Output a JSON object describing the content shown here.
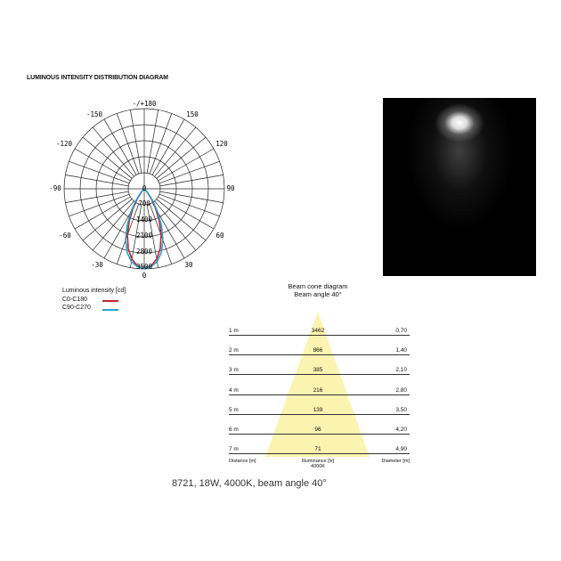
{
  "title": "LUMINOUS INTENSITY DISTRIBUTION DIAGRAM",
  "polar": {
    "angle_labels": {
      "top": "-/+180",
      "m150": "-150",
      "p150": "150",
      "m120": "-120",
      "p120": "120",
      "m90": "-90",
      "p90": "90",
      "m60": "-60",
      "p60": "60",
      "m30": "-30",
      "p30": "30",
      "bottom": "0"
    },
    "center_label": "0",
    "ring_labels": [
      "700",
      "1400",
      "2100",
      "2800",
      "3500"
    ],
    "ring_values": [
      700,
      1400,
      2100,
      2800,
      3500
    ],
    "max": 3500,
    "curves": [
      {
        "name": "C0-C180",
        "color": "#c0262d",
        "angles": [
          0,
          5,
          10,
          15,
          20,
          25,
          30,
          35,
          40,
          45,
          90
        ],
        "values": [
          3462,
          3380,
          3120,
          2700,
          2150,
          1550,
          980,
          520,
          220,
          60,
          0
        ]
      },
      {
        "name": "C90-C270",
        "color": "#2a9fd0",
        "angles": [
          0,
          5,
          10,
          15,
          20,
          25,
          30,
          35,
          40,
          45,
          90
        ],
        "values": [
          3462,
          3420,
          3230,
          2880,
          2380,
          1780,
          1180,
          660,
          300,
          80,
          0
        ]
      }
    ]
  },
  "legend": {
    "title": "Luminous intensity [cd]",
    "items": [
      {
        "label": "C0-C180",
        "color": "#c0262d"
      },
      {
        "label": "C90-C270",
        "color": "#2a9fd0"
      }
    ]
  },
  "photo": {
    "icon": "light-beam-photo"
  },
  "cone": {
    "title": "Beam cone diagram",
    "subtitle": "Beam angle 40°",
    "color": "#fbf3b0",
    "rows": [
      {
        "distance": "1 m",
        "illuminance": "3462",
        "diameter": "0,70"
      },
      {
        "distance": "2 m",
        "illuminance": "866",
        "diameter": "1,40"
      },
      {
        "distance": "3 m",
        "illuminance": "385",
        "diameter": "2,10"
      },
      {
        "distance": "4 m",
        "illuminance": "216",
        "diameter": "2,80"
      },
      {
        "distance": "5 m",
        "illuminance": "139",
        "diameter": "3,50"
      },
      {
        "distance": "6 m",
        "illuminance": "96",
        "diameter": "4,20"
      },
      {
        "distance": "7 m",
        "illuminance": "71",
        "diameter": "4,90"
      }
    ],
    "footer": {
      "distance": "Distance [m]",
      "illuminance": "Illuminance [lx]",
      "cct": "4000K",
      "diameter": "Diameter [m]"
    }
  },
  "caption": "8721, 18W, 4000K, beam angle 40°"
}
